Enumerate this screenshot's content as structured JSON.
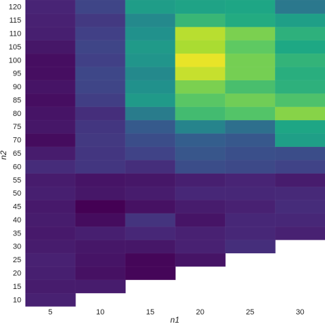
{
  "chart_data": {
    "type": "heatmap",
    "xlabel": "n1",
    "ylabel": "n2",
    "x": [
      5,
      10,
      15,
      20,
      25,
      30
    ],
    "y": [
      10,
      15,
      20,
      25,
      30,
      35,
      40,
      45,
      50,
      55,
      60,
      65,
      70,
      75,
      80,
      85,
      90,
      95,
      100,
      105,
      110,
      115,
      120
    ],
    "x_tick_labels": [
      "5",
      "10",
      "15",
      "20",
      "25",
      "30"
    ],
    "y_tick_labels": [
      "10",
      "15",
      "20",
      "25",
      "30",
      "35",
      "40",
      "45",
      "50",
      "55",
      "60",
      "65",
      "70",
      "75",
      "80",
      "85",
      "90",
      "95",
      "100",
      "105",
      "110",
      "115",
      "120"
    ],
    "values": [
      [
        0.12,
        null,
        null,
        null,
        null,
        null
      ],
      [
        0.1,
        0.1,
        null,
        null,
        null,
        null
      ],
      [
        0.11,
        0.06,
        0.02,
        null,
        null,
        null
      ],
      [
        0.12,
        0.07,
        0.02,
        0.07,
        null,
        null
      ],
      [
        0.1,
        0.08,
        0.08,
        0.12,
        0.17,
        null
      ],
      [
        0.09,
        0.11,
        0.14,
        0.12,
        0.14,
        0.12
      ],
      [
        0.1,
        0.04,
        0.19,
        0.07,
        0.14,
        0.14
      ],
      [
        0.09,
        0.0,
        0.06,
        0.1,
        0.12,
        0.16
      ],
      [
        0.11,
        0.08,
        0.1,
        0.14,
        0.14,
        0.15
      ],
      [
        0.1,
        0.07,
        0.08,
        0.11,
        0.13,
        0.1
      ],
      [
        0.16,
        0.2,
        0.17,
        0.3,
        0.28,
        0.25
      ],
      [
        0.1,
        0.2,
        0.25,
        0.34,
        0.31,
        0.3
      ],
      [
        0.04,
        0.21,
        0.3,
        0.38,
        0.35,
        0.58
      ],
      [
        0.08,
        0.2,
        0.36,
        0.47,
        0.42,
        0.62
      ],
      [
        0.07,
        0.17,
        0.45,
        0.7,
        0.73,
        0.82
      ],
      [
        0.05,
        0.23,
        0.55,
        0.74,
        0.78,
        0.72
      ],
      [
        0.07,
        0.26,
        0.5,
        0.8,
        0.71,
        0.66
      ],
      [
        0.05,
        0.27,
        0.48,
        0.92,
        0.79,
        0.65
      ],
      [
        0.05,
        0.24,
        0.52,
        0.97,
        0.79,
        0.67
      ],
      [
        0.08,
        0.26,
        0.55,
        0.88,
        0.75,
        0.63
      ],
      [
        0.11,
        0.24,
        0.5,
        0.9,
        0.8,
        0.66
      ],
      [
        0.12,
        0.21,
        0.48,
        0.68,
        0.64,
        0.58
      ],
      [
        0.13,
        0.26,
        0.57,
        0.6,
        0.62,
        0.44
      ]
    ],
    "colormap": "viridis",
    "colorbar": false,
    "grid": false,
    "legend": "none"
  }
}
